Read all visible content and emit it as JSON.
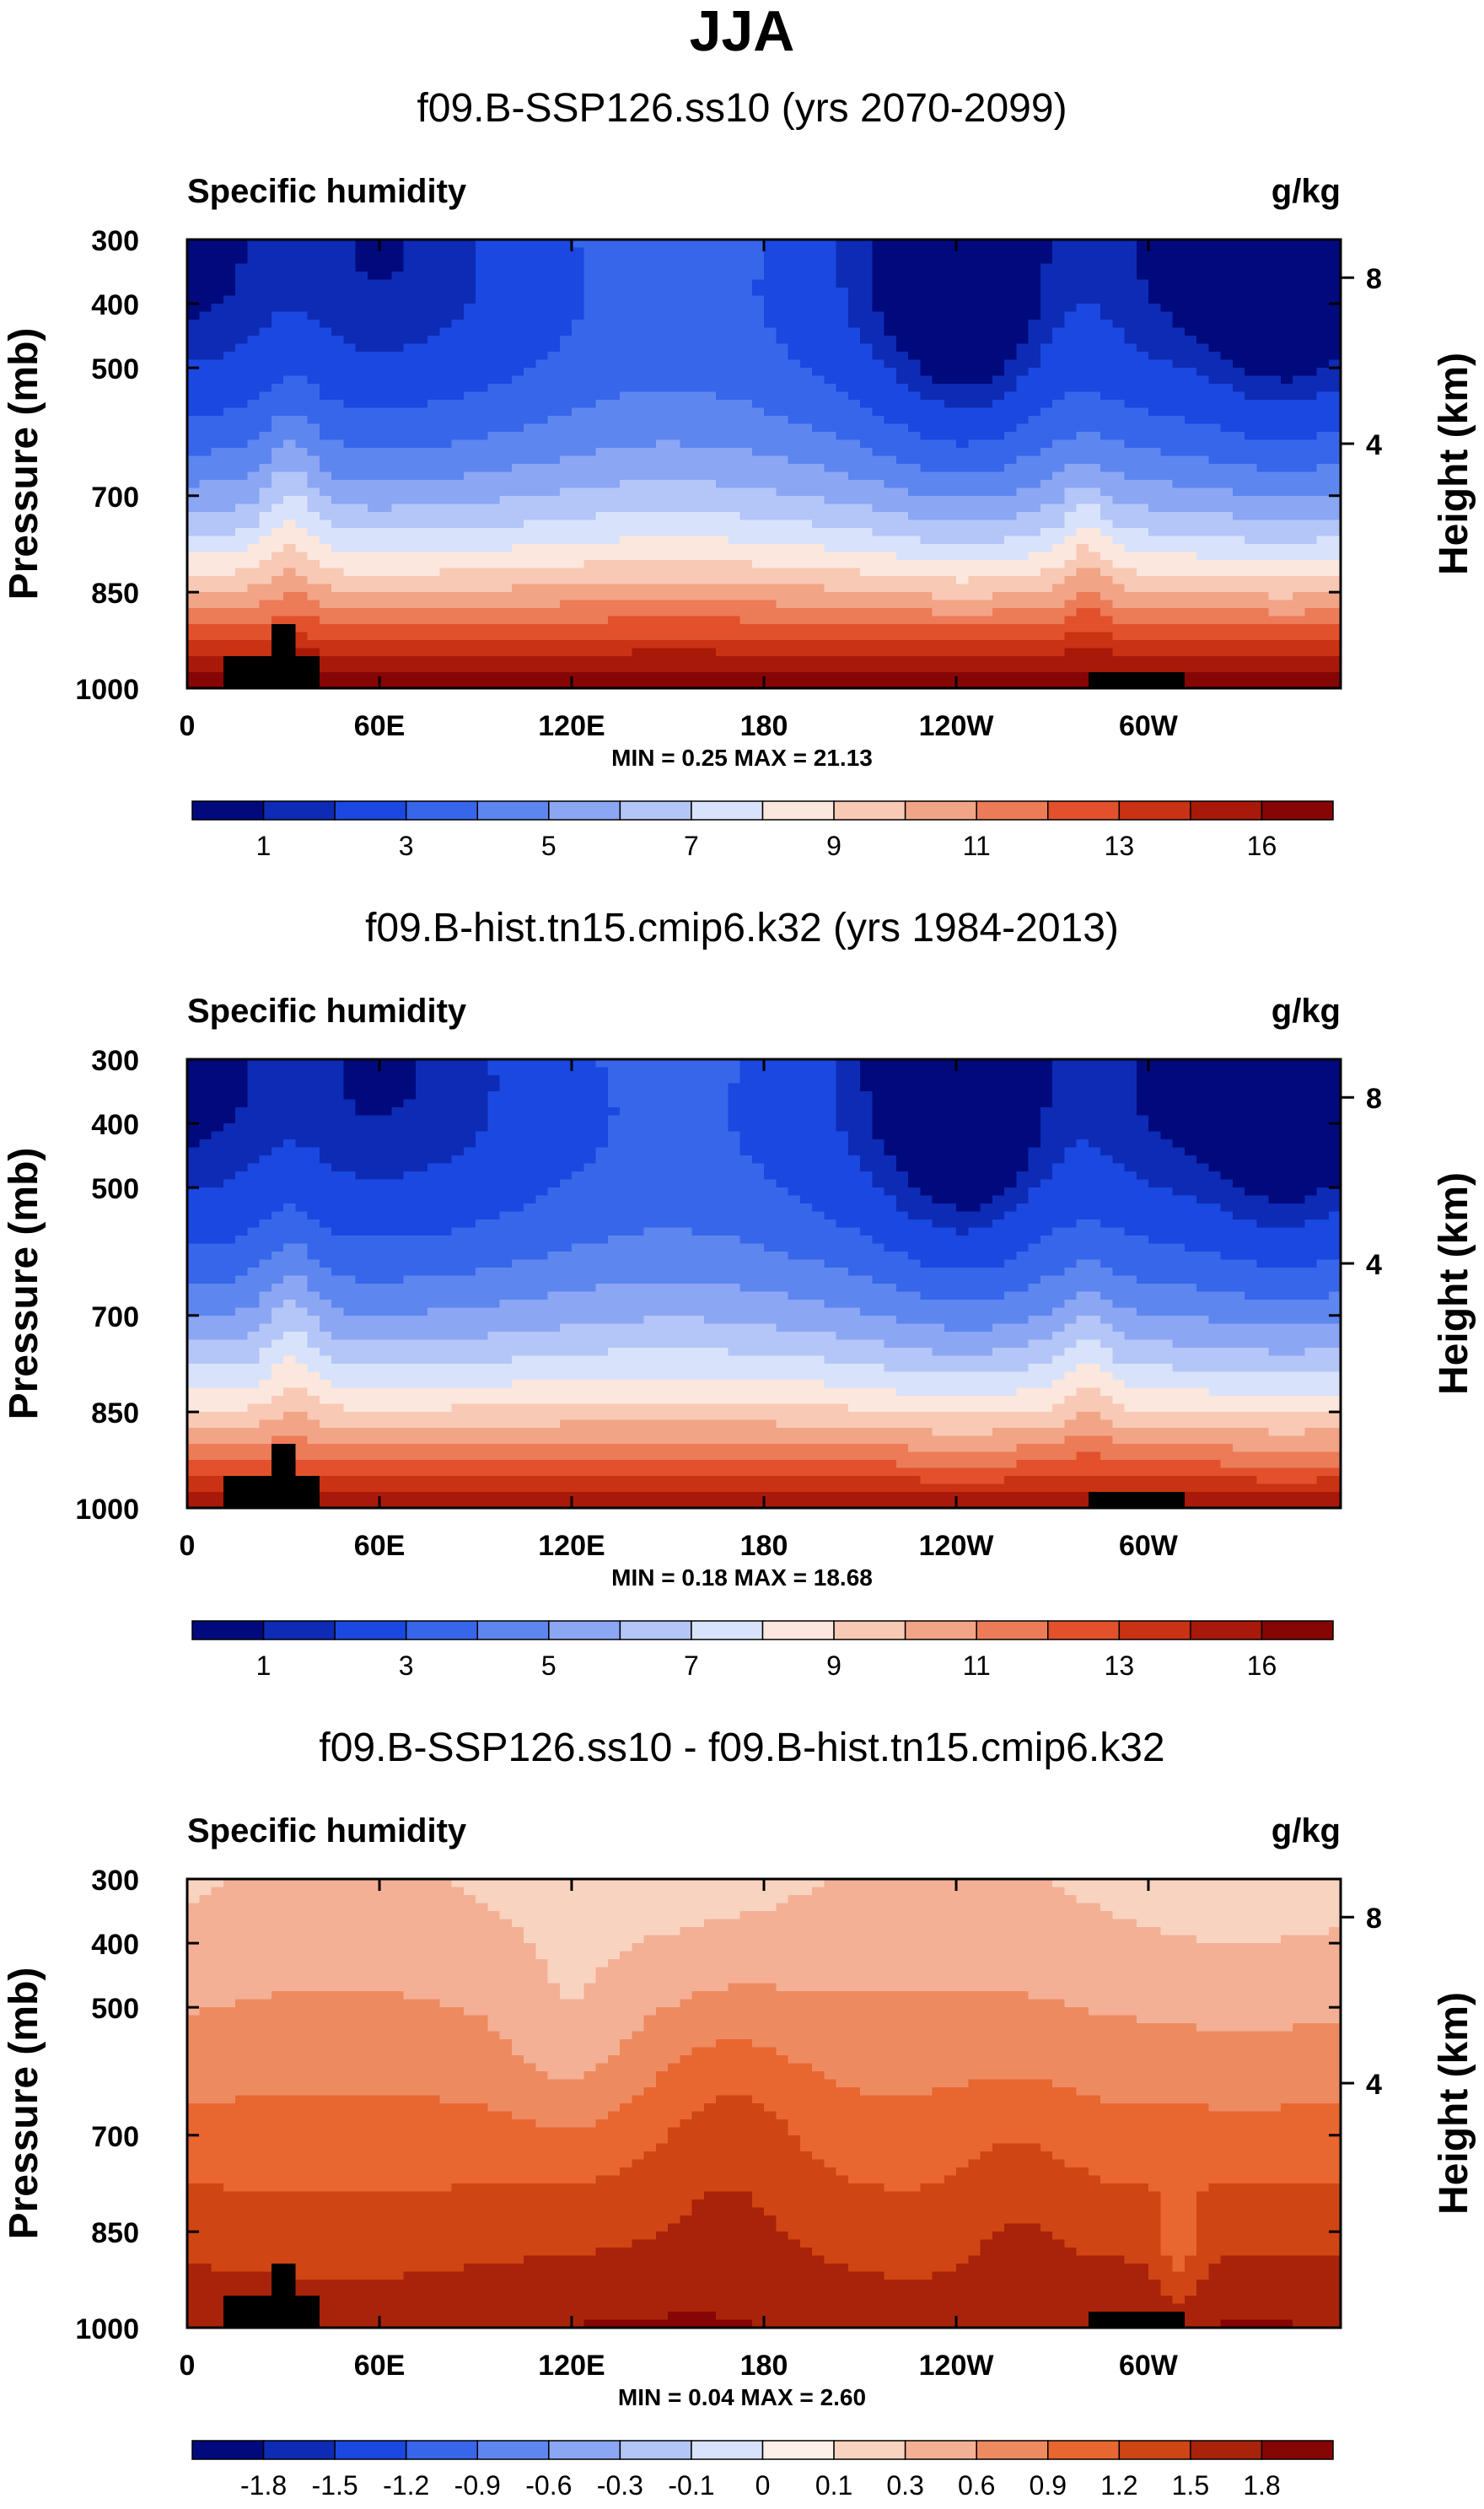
{
  "figure_title": "JJA",
  "colors": {
    "abs_levels": [
      "#000a7d",
      "#0d2bb5",
      "#1a48e0",
      "#3766ea",
      "#5e86ef",
      "#8ba6f3",
      "#b4c6f7",
      "#d8e3fb",
      "#fbe7dd",
      "#f8c9b5",
      "#f2a487",
      "#ec7b58",
      "#e2512c",
      "#c93213",
      "#a8190a",
      "#860505"
    ],
    "diff_levels": [
      "#000a7d",
      "#0d2bb5",
      "#1a48e0",
      "#3766ea",
      "#5e86ef",
      "#8ba6f3",
      "#b4c6f7",
      "#d8e3fb",
      "#fdf0e8",
      "#f8d3c0",
      "#f4b094",
      "#ee8a60",
      "#e8662f",
      "#cf4513",
      "#a8230a",
      "#860505"
    ]
  },
  "chart_data": [
    {
      "type": "contour",
      "title": "f09.B-SSP126.ss10 (yrs 2070-2099)",
      "left_label": "Specific humidity",
      "right_label": "g/kg",
      "ylabel": "Pressure (mb)",
      "y2label": "Height (km)",
      "yticks": [
        "300",
        "400",
        "500",
        "700",
        "850",
        "1000"
      ],
      "y2ticks": [
        "8",
        "4"
      ],
      "xticks": [
        "0",
        "60E",
        "120E",
        "180",
        "120W",
        "60W"
      ],
      "min_max": "MIN =   0.25  MAX =  21.13",
      "field": "abs",
      "colorbar_labels": [
        "1",
        "3",
        "5",
        "7",
        "9",
        "11",
        "13",
        "16"
      ]
    },
    {
      "type": "contour",
      "title": "f09.B-hist.tn15.cmip6.k32 (yrs 1984-2013)",
      "left_label": "Specific humidity",
      "right_label": "g/kg",
      "ylabel": "Pressure (mb)",
      "y2label": "Height (km)",
      "yticks": [
        "300",
        "400",
        "500",
        "700",
        "850",
        "1000"
      ],
      "y2ticks": [
        "8",
        "4"
      ],
      "xticks": [
        "0",
        "60E",
        "120E",
        "180",
        "120W",
        "60W"
      ],
      "min_max": "MIN =   0.18  MAX =  18.68",
      "field": "abs2",
      "colorbar_labels": [
        "1",
        "3",
        "5",
        "7",
        "9",
        "11",
        "13",
        "16"
      ]
    },
    {
      "type": "contour",
      "title": "f09.B-SSP126.ss10 - f09.B-hist.tn15.cmip6.k32",
      "left_label": "Specific humidity",
      "right_label": "g/kg",
      "ylabel": "Pressure (mb)",
      "y2label": "Height (km)",
      "yticks": [
        "300",
        "400",
        "500",
        "700",
        "850",
        "1000"
      ],
      "y2ticks": [
        "8",
        "4"
      ],
      "xticks": [
        "0",
        "60E",
        "120E",
        "180",
        "120W",
        "60W"
      ],
      "min_max": "MIN =   0.04  MAX =   2.60",
      "field": "diff",
      "colorbar_labels": [
        "-1.8",
        "-1.5",
        "-1.2",
        "-0.9",
        "-0.6",
        "-0.3",
        "-0.1",
        "0",
        "0.1",
        "0.3",
        "0.6",
        "0.9",
        "1.2",
        "1.5",
        "1.8"
      ]
    }
  ]
}
